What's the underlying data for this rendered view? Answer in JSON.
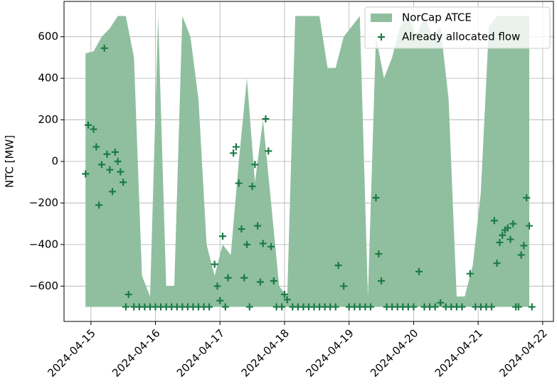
{
  "chart_data": {
    "type": "area_scatter",
    "ylabel": "NTC [MW]",
    "xlim": [
      "2024-04-14T14:00",
      "2024-04-22T04:00"
    ],
    "ylim": [
      -770,
      770
    ],
    "xticks": [
      "2024-04-15",
      "2024-04-16",
      "2024-04-17",
      "2024-04-18",
      "2024-04-19",
      "2024-04-20",
      "2024-04-21",
      "2024-04-22"
    ],
    "yticks": [
      {
        "value": -600,
        "label": "−600"
      },
      {
        "value": -400,
        "label": "−400"
      },
      {
        "value": -200,
        "label": "−200"
      },
      0,
      200,
      400,
      600
    ],
    "grid": true,
    "legend": "upper right",
    "series": [
      {
        "name": "NorCap ATCE",
        "type": "area",
        "color": "#8fbf9f",
        "x": [
          "2024-04-14T22:00",
          "2024-04-15T01:00",
          "2024-04-15T04:00",
          "2024-04-15T07:00",
          "2024-04-15T10:00",
          "2024-04-15T13:00",
          "2024-04-15T16:00",
          "2024-04-15T19:00",
          "2024-04-15T22:00",
          "2024-04-16T01:00",
          "2024-04-16T04:00",
          "2024-04-16T07:00",
          "2024-04-16T10:00",
          "2024-04-16T13:00",
          "2024-04-16T16:00",
          "2024-04-16T19:00",
          "2024-04-16T22:00",
          "2024-04-17T01:00",
          "2024-04-17T04:00",
          "2024-04-17T07:00",
          "2024-04-17T10:00",
          "2024-04-17T13:00",
          "2024-04-17T16:00",
          "2024-04-17T19:00",
          "2024-04-17T22:00",
          "2024-04-18T01:00",
          "2024-04-18T04:00",
          "2024-04-18T07:00",
          "2024-04-18T10:00",
          "2024-04-18T13:00",
          "2024-04-18T16:00",
          "2024-04-18T19:00",
          "2024-04-18T22:00",
          "2024-04-19T01:00",
          "2024-04-19T04:00",
          "2024-04-19T07:00",
          "2024-04-19T10:00",
          "2024-04-19T13:00",
          "2024-04-19T16:00",
          "2024-04-19T19:00",
          "2024-04-19T22:00",
          "2024-04-20T01:00",
          "2024-04-20T04:00",
          "2024-04-20T07:00",
          "2024-04-20T10:00",
          "2024-04-20T13:00",
          "2024-04-20T16:00",
          "2024-04-20T19:00",
          "2024-04-20T22:00",
          "2024-04-21T01:00",
          "2024-04-21T04:00",
          "2024-04-21T07:00",
          "2024-04-21T10:00",
          "2024-04-21T13:00",
          "2024-04-21T16:00",
          "2024-04-21T19:00"
        ],
        "values": [
          520,
          530,
          600,
          640,
          700,
          700,
          500,
          -550,
          -650,
          700,
          -600,
          -600,
          700,
          600,
          300,
          -400,
          -550,
          -400,
          -450,
          0,
          400,
          -100,
          200,
          -200,
          -600,
          -650,
          700,
          700,
          700,
          700,
          450,
          450,
          600,
          650,
          700,
          -650,
          600,
          400,
          500,
          650,
          700,
          600,
          700,
          600,
          650,
          300,
          -650,
          -650,
          -500,
          -150,
          650,
          700,
          700,
          700,
          700,
          700
        ],
        "lower": [
          -700,
          -700,
          -700,
          -700,
          -700,
          -700,
          -700,
          -700,
          -700,
          -700,
          -700,
          -700,
          -700,
          -700,
          -700,
          -700,
          -700,
          -700,
          -700,
          -700,
          -700,
          -700,
          -700,
          -700,
          -700,
          -700,
          -700,
          -700,
          -700,
          -700,
          -700,
          -700,
          -700,
          -700,
          -700,
          -700,
          -700,
          -700,
          -700,
          -700,
          -700,
          -700,
          -700,
          -700,
          -700,
          -700,
          -700,
          -700,
          -700,
          -700,
          -700,
          -700,
          -700,
          -700,
          -700,
          -700
        ]
      },
      {
        "name": "Already allocated flow",
        "type": "scatter",
        "color": "#1b7b45",
        "x": [
          "2024-04-14T22:00",
          "2024-04-14T23:00",
          "2024-04-15T01:00",
          "2024-04-15T02:00",
          "2024-04-15T03:00",
          "2024-04-15T04:00",
          "2024-04-15T05:00",
          "2024-04-15T06:00",
          "2024-04-15T07:00",
          "2024-04-15T08:00",
          "2024-04-15T09:00",
          "2024-04-15T10:00",
          "2024-04-15T11:00",
          "2024-04-15T12:00",
          "2024-04-15T13:00",
          "2024-04-15T14:00",
          "2024-04-15T16:00",
          "2024-04-15T18:00",
          "2024-04-15T20:00",
          "2024-04-15T22:00",
          "2024-04-16T00:00",
          "2024-04-16T02:00",
          "2024-04-16T04:00",
          "2024-04-16T06:00",
          "2024-04-16T08:00",
          "2024-04-16T10:00",
          "2024-04-16T12:00",
          "2024-04-16T14:00",
          "2024-04-16T16:00",
          "2024-04-16T18:00",
          "2024-04-16T20:00",
          "2024-04-16T22:00",
          "2024-04-16T23:00",
          "2024-04-17T00:00",
          "2024-04-17T01:00",
          "2024-04-17T02:00",
          "2024-04-17T03:00",
          "2024-04-17T05:00",
          "2024-04-17T06:00",
          "2024-04-17T07:00",
          "2024-04-17T08:00",
          "2024-04-17T09:00",
          "2024-04-17T10:00",
          "2024-04-17T11:00",
          "2024-04-17T12:00",
          "2024-04-17T13:00",
          "2024-04-17T14:00",
          "2024-04-17T15:00",
          "2024-04-17T16:00",
          "2024-04-17T17:00",
          "2024-04-17T18:00",
          "2024-04-17T19:00",
          "2024-04-17T20:00",
          "2024-04-17T21:00",
          "2024-04-17T23:00",
          "2024-04-18T00:00",
          "2024-04-18T01:00",
          "2024-04-18T03:00",
          "2024-04-18T05:00",
          "2024-04-18T07:00",
          "2024-04-18T09:00",
          "2024-04-18T11:00",
          "2024-04-18T13:00",
          "2024-04-18T15:00",
          "2024-04-18T17:00",
          "2024-04-18T19:00",
          "2024-04-18T20:00",
          "2024-04-18T22:00",
          "2024-04-19T00:00",
          "2024-04-19T02:00",
          "2024-04-19T04:00",
          "2024-04-19T06:00",
          "2024-04-19T08:00",
          "2024-04-19T10:00",
          "2024-04-19T11:00",
          "2024-04-19T12:00",
          "2024-04-19T14:00",
          "2024-04-19T16:00",
          "2024-04-19T18:00",
          "2024-04-19T20:00",
          "2024-04-19T22:00",
          "2024-04-20T00:00",
          "2024-04-20T02:00",
          "2024-04-20T04:00",
          "2024-04-20T06:00",
          "2024-04-20T08:00",
          "2024-04-20T10:00",
          "2024-04-20T12:00",
          "2024-04-20T14:00",
          "2024-04-20T16:00",
          "2024-04-20T18:00",
          "2024-04-20T21:00",
          "2024-04-20T23:00",
          "2024-04-21T01:00",
          "2024-04-21T03:00",
          "2024-04-21T05:00",
          "2024-04-21T06:00",
          "2024-04-21T07:00",
          "2024-04-21T08:00",
          "2024-04-21T09:00",
          "2024-04-21T10:00",
          "2024-04-21T11:00",
          "2024-04-21T12:00",
          "2024-04-21T13:00",
          "2024-04-21T14:00",
          "2024-04-21T15:00",
          "2024-04-21T16:00",
          "2024-04-21T17:00",
          "2024-04-21T18:00",
          "2024-04-21T19:00",
          "2024-04-21T20:00"
        ],
        "values": [
          -60,
          175,
          155,
          70,
          -210,
          -15,
          545,
          35,
          -40,
          -145,
          45,
          0,
          -50,
          -100,
          -700,
          -640,
          -700,
          -700,
          -700,
          -700,
          -700,
          -700,
          -700,
          -700,
          -700,
          -700,
          -700,
          -700,
          -700,
          -700,
          -700,
          -495,
          -600,
          -670,
          -360,
          -700,
          -560,
          40,
          70,
          -105,
          -325,
          -560,
          -400,
          -700,
          -120,
          -15,
          -310,
          -580,
          -395,
          205,
          50,
          -410,
          -575,
          -700,
          -700,
          -640,
          -665,
          -700,
          -700,
          -700,
          -700,
          -700,
          -700,
          -700,
          -700,
          -700,
          -500,
          -600,
          -700,
          -700,
          -700,
          -700,
          -700,
          -175,
          -445,
          -575,
          -700,
          -700,
          -700,
          -700,
          -700,
          -700,
          -530,
          -700,
          -700,
          -700,
          -680,
          -700,
          -700,
          -700,
          -700,
          -540,
          -700,
          -700,
          -700,
          -700,
          -285,
          -490,
          -390,
          -355,
          -330,
          -320,
          -375,
          -300,
          -700,
          -700,
          -450,
          -405,
          -175,
          -310,
          -700
        ]
      }
    ]
  }
}
